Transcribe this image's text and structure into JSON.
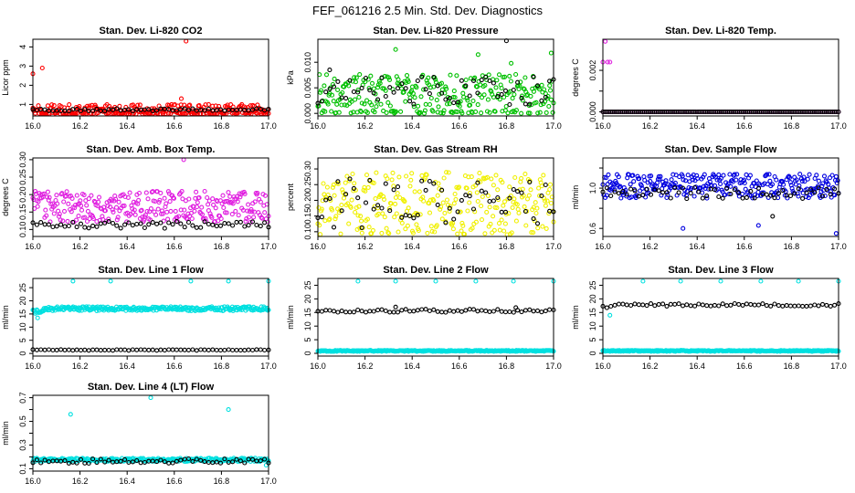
{
  "title": "FEF_061216  2.5 Min. Std. Dev. Diagnostics",
  "colors": {
    "axis": "#000000",
    "black_series": "#000000"
  },
  "chart_data": [
    {
      "type": "scatter",
      "title": "Stan. Dev. Li-820 CO2",
      "xlabel": "",
      "ylabel": "Licor ppm",
      "xlim": [
        16.0,
        17.0
      ],
      "ylim": [
        0.4,
        4.4
      ],
      "xticks": [
        16.0,
        16.2,
        16.4,
        16.6,
        16.8,
        17.0
      ],
      "xtick_labels": [
        "16.0",
        "16.2",
        "16.4",
        "16.6",
        "16.8",
        "17.0"
      ],
      "yticks": [
        1,
        2,
        3,
        4
      ],
      "ytick_labels": [
        "1",
        "2",
        "3",
        "4"
      ],
      "series": [
        {
          "name": "primary",
          "color": "#ff0000",
          "base": 0.75,
          "spread": 0.25,
          "baseline_floor": 0.5,
          "extras": [
            [
              16.0,
              2.6
            ],
            [
              16.04,
              2.9
            ],
            [
              16.65,
              4.3
            ],
            [
              16.63,
              1.3
            ]
          ]
        },
        {
          "name": "secondary",
          "color": "#000000",
          "base": 0.72,
          "spread": 0.07,
          "extras": []
        }
      ]
    },
    {
      "type": "scatter",
      "title": "Stan. Dev. Li-820 Pressure",
      "xlabel": "",
      "ylabel": "kPa",
      "xlim": [
        16.0,
        17.0
      ],
      "ylim": [
        -0.0005,
        0.0145
      ],
      "xticks": [
        16.0,
        16.2,
        16.4,
        16.6,
        16.8,
        17.0
      ],
      "xtick_labels": [
        "16.0",
        "16.2",
        "16.4",
        "16.6",
        "16.8",
        "17.0"
      ],
      "yticks": [
        0.0,
        0.005,
        0.01
      ],
      "ytick_labels": [
        "0.000",
        "0.005",
        "0.010"
      ],
      "series": [
        {
          "name": "primary",
          "color": "#00c000",
          "base": 0.0045,
          "spread": 0.0032,
          "baseline_floor": 0.0,
          "extras": [
            [
              16.33,
              0.0125
            ],
            [
              16.68,
              0.0115
            ],
            [
              16.99,
              0.0118
            ],
            [
              16.82,
              0.0098
            ]
          ]
        },
        {
          "name": "secondary",
          "color": "#000000",
          "base": 0.0045,
          "spread": 0.0028,
          "extras": [
            [
              16.8,
              0.0142
            ],
            [
              16.05,
              0.0085
            ]
          ]
        }
      ]
    },
    {
      "type": "scatter",
      "title": "Stan. Dev. Li-820 Temp.",
      "xlabel": "",
      "ylabel": "degrees C",
      "xlim": [
        16.0,
        17.0
      ],
      "ylim": [
        -0.0002,
        0.0035
      ],
      "xticks": [
        16.0,
        16.2,
        16.4,
        16.6,
        16.8,
        17.0
      ],
      "xtick_labels": [
        "16.0",
        "16.2",
        "16.4",
        "16.6",
        "16.8",
        "17.0"
      ],
      "yticks": [
        0.0,
        0.001,
        0.002
      ],
      "ytick_labels": [
        "0.000",
        "",
        "0.002"
      ],
      "series": [
        {
          "name": "primary",
          "color": "#e020e0",
          "base": 0.0,
          "spread": 0.0,
          "baseline_floor": 0.0,
          "extras": [
            [
              16.01,
              0.0034
            ],
            [
              16.02,
              0.0024
            ],
            [
              16.03,
              0.0024
            ],
            [
              16.0,
              0.0024
            ]
          ]
        },
        {
          "name": "secondary",
          "color": "#000000",
          "base": 0.0,
          "spread": 0.0,
          "extras": []
        }
      ]
    },
    {
      "type": "scatter",
      "title": "Stan. Dev. Amb. Box Temp.",
      "xlabel": "",
      "ylabel": "degrees C",
      "xlim": [
        16.0,
        17.0
      ],
      "ylim": [
        0.08,
        0.305
      ],
      "xticks": [
        16.0,
        16.2,
        16.4,
        16.6,
        16.8,
        17.0
      ],
      "xtick_labels": [
        "16.0",
        "16.2",
        "16.4",
        "16.6",
        "16.8",
        "17.0"
      ],
      "yticks": [
        0.1,
        0.15,
        0.2,
        0.25,
        0.3
      ],
      "ytick_labels": [
        "0.10",
        "0.15",
        "0.20",
        "0.25",
        "0.30"
      ],
      "series": [
        {
          "name": "primary",
          "color": "#e020e0",
          "base": 0.165,
          "spread": 0.045,
          "extras": [
            [
              16.64,
              0.3
            ]
          ]
        },
        {
          "name": "secondary",
          "color": "#000000",
          "base": 0.113,
          "spread": 0.01,
          "extras": []
        }
      ]
    },
    {
      "type": "scatter",
      "title": "Stan. Dev. Gas Stream RH",
      "xlabel": "",
      "ylabel": "percent",
      "xlim": [
        16.0,
        17.0
      ],
      "ylim": [
        0.085,
        0.335
      ],
      "xticks": [
        16.0,
        16.2,
        16.4,
        16.6,
        16.8,
        17.0
      ],
      "xtick_labels": [
        "16.0",
        "16.2",
        "16.4",
        "16.6",
        "16.8",
        "17.0"
      ],
      "yticks": [
        0.1,
        0.15,
        0.2,
        0.25,
        0.3
      ],
      "ytick_labels": [
        "0.10",
        "0.15",
        "0.20",
        "0.25",
        "0.30"
      ],
      "series": [
        {
          "name": "primary",
          "color": "#f0f000",
          "base": 0.19,
          "spread": 0.1,
          "extras": []
        },
        {
          "name": "secondary",
          "color": "#000000",
          "base": 0.19,
          "spread": 0.08,
          "extras": []
        }
      ]
    },
    {
      "type": "scatter",
      "title": "Stan. Dev. Sample Flow",
      "xlabel": "",
      "ylabel": "ml/min",
      "xlim": [
        16.0,
        17.0
      ],
      "ylim": [
        0.52,
        1.3
      ],
      "xticks": [
        16.0,
        16.2,
        16.4,
        16.6,
        16.8,
        17.0
      ],
      "xtick_labels": [
        "16.0",
        "16.2",
        "16.4",
        "16.6",
        "16.8",
        "17.0"
      ],
      "yticks": [
        0.6,
        0.8,
        1.0,
        1.2
      ],
      "ytick_labels": [
        "0.6",
        "",
        "1.0",
        ""
      ],
      "series": [
        {
          "name": "primary",
          "color": "#0000e0",
          "base": 1.02,
          "spread": 0.12,
          "extras": [
            [
              16.34,
              0.6
            ],
            [
              16.99,
              0.55
            ],
            [
              16.66,
              0.63
            ]
          ]
        },
        {
          "name": "secondary",
          "color": "#000000",
          "base": 0.95,
          "spread": 0.06,
          "extras": [
            [
              16.72,
              0.72
            ]
          ]
        }
      ]
    },
    {
      "type": "scatter",
      "title": "Stan. Dev. Line 1 Flow",
      "xlabel": "",
      "ylabel": "ml/min",
      "xlim": [
        16.0,
        17.0
      ],
      "ylim": [
        -1.0,
        28.5
      ],
      "xticks": [
        16.0,
        16.2,
        16.4,
        16.6,
        16.8,
        17.0
      ],
      "xtick_labels": [
        "16.0",
        "16.2",
        "16.4",
        "16.6",
        "16.8",
        "17.0"
      ],
      "yticks": [
        0,
        5,
        10,
        15,
        20,
        25
      ],
      "ytick_labels": [
        "0",
        "5",
        "10",
        "15",
        "20",
        "25"
      ],
      "series": [
        {
          "name": "primary",
          "color": "#00e0e0",
          "base": 17.0,
          "spread": 0.8,
          "ramp": true,
          "extras": [
            [
              16.17,
              27.5
            ],
            [
              16.33,
              27.5
            ],
            [
              16.67,
              27.5
            ],
            [
              16.83,
              27.5
            ],
            [
              17.0,
              27.5
            ],
            [
              16.02,
              13.5
            ]
          ]
        },
        {
          "name": "secondary",
          "color": "#000000",
          "base": 1.3,
          "spread": 0.15,
          "extras": []
        }
      ]
    },
    {
      "type": "scatter",
      "title": "Stan. Dev. Line 2 Flow",
      "xlabel": "",
      "ylabel": "ml/min",
      "xlim": [
        16.0,
        17.0
      ],
      "ylim": [
        -1.0,
        27.5
      ],
      "xticks": [
        16.0,
        16.2,
        16.4,
        16.6,
        16.8,
        17.0
      ],
      "xtick_labels": [
        "16.0",
        "16.2",
        "16.4",
        "16.6",
        "16.8",
        "17.0"
      ],
      "yticks": [
        0,
        5,
        10,
        15,
        20,
        25
      ],
      "ytick_labels": [
        "0",
        "5",
        "10",
        "15",
        "20",
        "25"
      ],
      "series": [
        {
          "name": "primary",
          "color": "#00e0e0",
          "base": 0.9,
          "spread": 0.2,
          "extras": [
            [
              16.17,
              26.5
            ],
            [
              16.33,
              26.5
            ],
            [
              16.5,
              26.5
            ],
            [
              16.67,
              26.5
            ],
            [
              16.83,
              26.5
            ],
            [
              17.0,
              26.5
            ]
          ]
        },
        {
          "name": "secondary",
          "color": "#000000",
          "base": 15.6,
          "spread": 0.6,
          "extras": [
            [
              16.33,
              17.0
            ],
            [
              16.84,
              16.8
            ]
          ]
        }
      ]
    },
    {
      "type": "scatter",
      "title": "Stan. Dev. Line 3 Flow",
      "xlabel": "",
      "ylabel": "ml/min",
      "xlim": [
        16.0,
        17.0
      ],
      "ylim": [
        -1.0,
        27.5
      ],
      "xticks": [
        16.0,
        16.2,
        16.4,
        16.6,
        16.8,
        17.0
      ],
      "xtick_labels": [
        "16.0",
        "16.2",
        "16.4",
        "16.6",
        "16.8",
        "17.0"
      ],
      "yticks": [
        0,
        5,
        10,
        15,
        20,
        25
      ],
      "ytick_labels": [
        "0",
        "5",
        "10",
        "15",
        "20",
        "25"
      ],
      "series": [
        {
          "name": "primary",
          "color": "#00e0e0",
          "base": 0.9,
          "spread": 0.2,
          "extras": [
            [
              16.17,
              26.5
            ],
            [
              16.33,
              26.5
            ],
            [
              16.5,
              26.5
            ],
            [
              16.67,
              26.5
            ],
            [
              16.83,
              26.5
            ],
            [
              17.0,
              26.5
            ],
            [
              16.03,
              14.0
            ]
          ]
        },
        {
          "name": "secondary",
          "color": "#000000",
          "base": 17.8,
          "spread": 0.5,
          "ramp": true,
          "extras": []
        }
      ]
    },
    {
      "type": "scatter",
      "title": "Stan. Dev. Line 4 (LT) Flow",
      "xlabel": "",
      "ylabel": "ml/min",
      "xlim": [
        16.0,
        17.0
      ],
      "ylim": [
        0.08,
        0.72
      ],
      "xticks": [
        16.0,
        16.2,
        16.4,
        16.6,
        16.8,
        17.0
      ],
      "xtick_labels": [
        "16.0",
        "16.2",
        "16.4",
        "16.6",
        "16.8",
        "17.0"
      ],
      "yticks": [
        0.1,
        0.2,
        0.3,
        0.4,
        0.5,
        0.6,
        0.7
      ],
      "ytick_labels": [
        "0.1",
        "",
        "0.3",
        "",
        "0.5",
        "",
        "0.7"
      ],
      "series": [
        {
          "name": "primary",
          "color": "#00e0e0",
          "base": 0.175,
          "spread": 0.015,
          "extras": [
            [
              16.16,
              0.56
            ],
            [
              16.5,
              0.7
            ],
            [
              16.83,
              0.6
            ],
            [
              16.99,
              0.13
            ]
          ]
        },
        {
          "name": "secondary",
          "color": "#000000",
          "base": 0.165,
          "spread": 0.02,
          "extras": []
        }
      ]
    }
  ]
}
